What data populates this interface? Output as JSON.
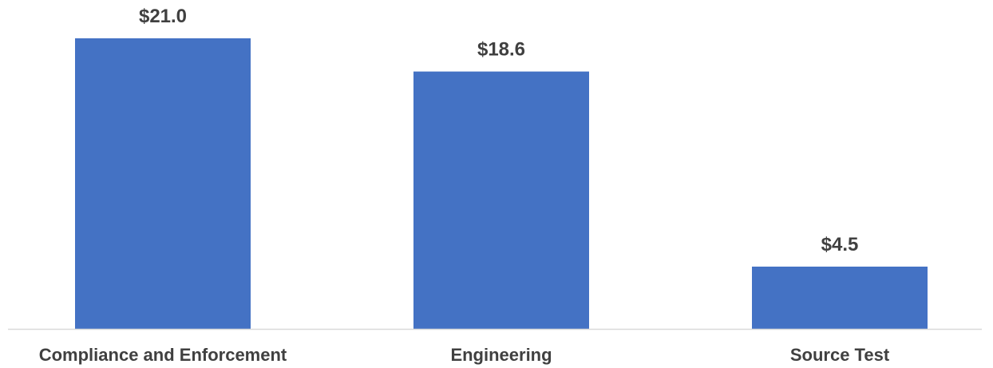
{
  "chart_data": {
    "type": "bar",
    "categories": [
      "Compliance and Enforcement",
      "Engineering",
      "Source Test"
    ],
    "values": [
      21.0,
      18.6,
      4.5
    ],
    "data_labels": [
      "$21.0",
      "$18.6",
      "$4.5"
    ],
    "title": "",
    "xlabel": "",
    "ylabel": "",
    "ylim": [
      0,
      21.0
    ],
    "grid": false,
    "legend": "none",
    "colors": {
      "bar": "#4472C4",
      "axis": "#D9D9D9",
      "text": "#404040"
    }
  }
}
